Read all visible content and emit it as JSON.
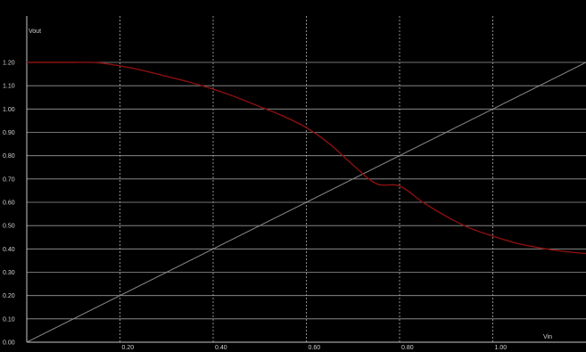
{
  "chart_data": {
    "type": "line",
    "title": "",
    "xlabel": "Vin",
    "ylabel": "Vout",
    "xlim": [
      0,
      1.2
    ],
    "ylim": [
      0,
      1.2
    ],
    "xticks": [
      0.2,
      0.4,
      0.6,
      0.8,
      1.0
    ],
    "xtick_labels": [
      "0.20",
      "0.40",
      "0.60",
      "0.80",
      "1.00"
    ],
    "yticks": [
      0,
      0.1,
      0.2,
      0.3,
      0.4,
      0.5,
      0.6,
      0.7,
      0.8,
      0.9,
      1.0,
      1.1,
      1.2
    ],
    "ytick_labels": [
      "0.00",
      "0.10",
      "0.20",
      "0.30",
      "0.40",
      "0.50",
      "0.60",
      "0.70",
      "0.80",
      "0.90",
      "1.00",
      "1.10",
      "1.20"
    ],
    "grid": {
      "x": "dashed",
      "y": "solid"
    },
    "background": "#000000",
    "series": [
      {
        "color": "#8b1010",
        "x": [
          0,
          0.05,
          0.1,
          0.15,
          0.2,
          0.25,
          0.3,
          0.35,
          0.4,
          0.45,
          0.5,
          0.55,
          0.6,
          0.65,
          0.7,
          0.75,
          0.8,
          0.85,
          0.9,
          0.95,
          1.0,
          1.05,
          1.1,
          1.15,
          1.2
        ],
        "y": [
          1.2,
          1.2,
          1.2,
          1.199,
          1.185,
          1.165,
          1.14,
          1.115,
          1.085,
          1.05,
          1.01,
          0.97,
          0.92,
          0.85,
          0.76,
          0.68,
          0.67,
          0.6,
          0.54,
          0.49,
          0.455,
          0.425,
          0.405,
          0.39,
          0.38
        ]
      },
      {
        "color": "#8a8a8a",
        "x": [
          0,
          1.2
        ],
        "y": [
          0,
          1.2
        ]
      }
    ]
  }
}
